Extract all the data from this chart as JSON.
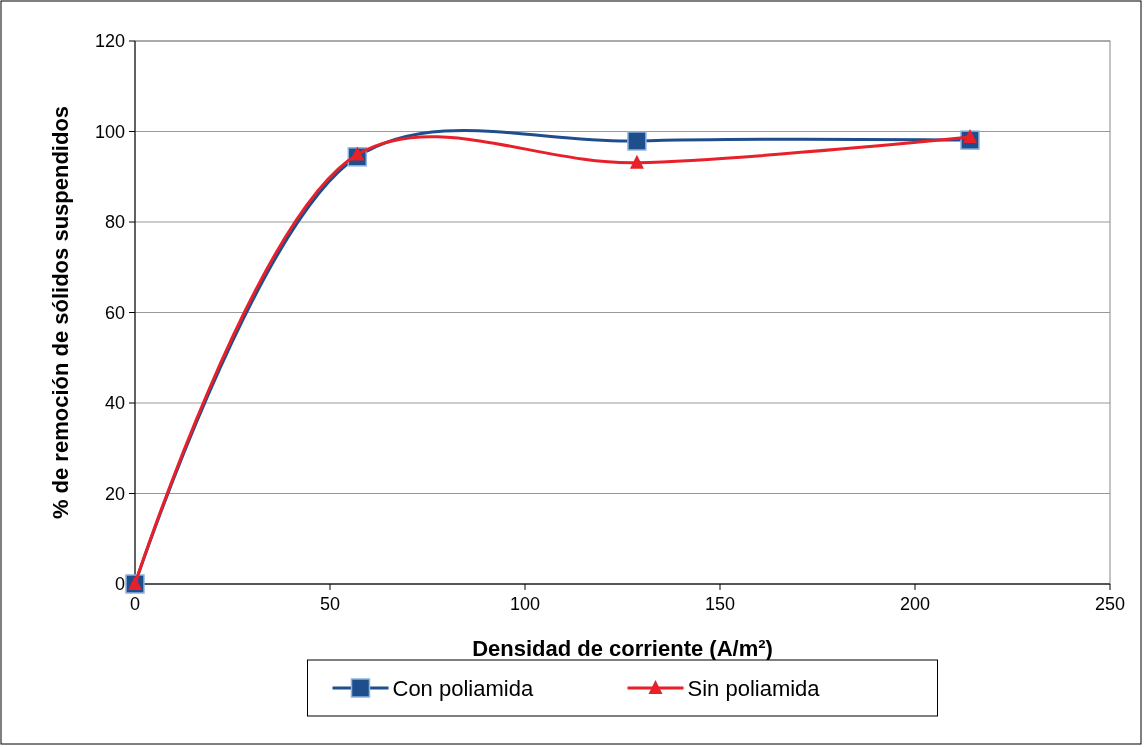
{
  "chart_data": {
    "type": "line",
    "xlabel": "Densidad de corriente (A/m²)",
    "ylabel": "% de remoción de sólidos suspendidos",
    "xlim": [
      0,
      250
    ],
    "xticks": [
      0,
      50,
      100,
      150,
      200,
      250
    ],
    "ylim": [
      0,
      120
    ],
    "yticks": [
      0,
      20,
      40,
      60,
      80,
      100,
      120
    ],
    "grid": "y",
    "legend": "bottom",
    "series": [
      {
        "name": "Con poliamida",
        "color": "#1f4e8c",
        "marker": "square",
        "x": [
          0,
          57,
          128.7,
          214.1
        ],
        "values": [
          0,
          94.4,
          97.9,
          98.1
        ]
      },
      {
        "name": "Sin poliamida",
        "color": "#e8202a",
        "marker": "triangle",
        "x": [
          0,
          57,
          128.7,
          214.1
        ],
        "values": [
          0,
          94.9,
          93.1,
          98.8
        ]
      }
    ]
  }
}
